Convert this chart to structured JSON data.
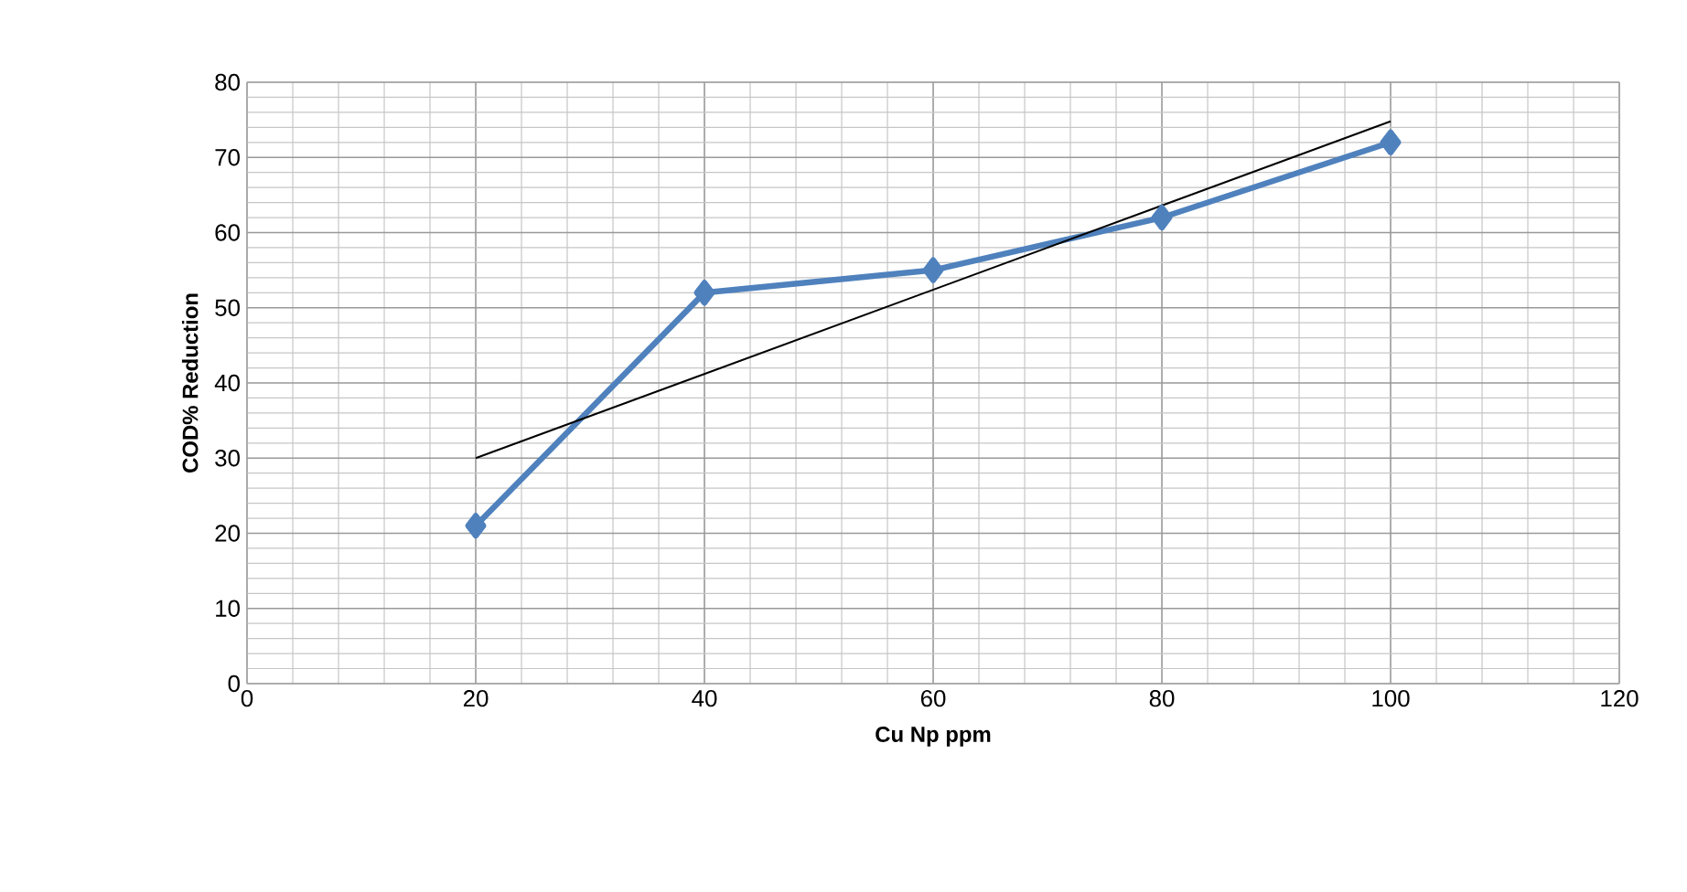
{
  "chart_data": {
    "type": "line",
    "xlabel": "Cu Np ppm",
    "ylabel": "COD% Reduction",
    "xlim": [
      0,
      120
    ],
    "ylim": [
      0,
      80
    ],
    "xticks": [
      0,
      20,
      40,
      60,
      80,
      100,
      120
    ],
    "yticks": [
      0,
      10,
      20,
      30,
      40,
      50,
      60,
      70,
      80
    ],
    "grid": true,
    "series": [
      {
        "color": "#4f81bd",
        "marker": "diamond",
        "x": [
          20,
          40,
          60,
          80,
          100
        ],
        "values": [
          21,
          52,
          55,
          62,
          72
        ]
      },
      {
        "type": "line",
        "color": "#000000",
        "marker": "none",
        "x": [
          20,
          100
        ],
        "values": [
          30,
          74.8
        ]
      }
    ]
  }
}
